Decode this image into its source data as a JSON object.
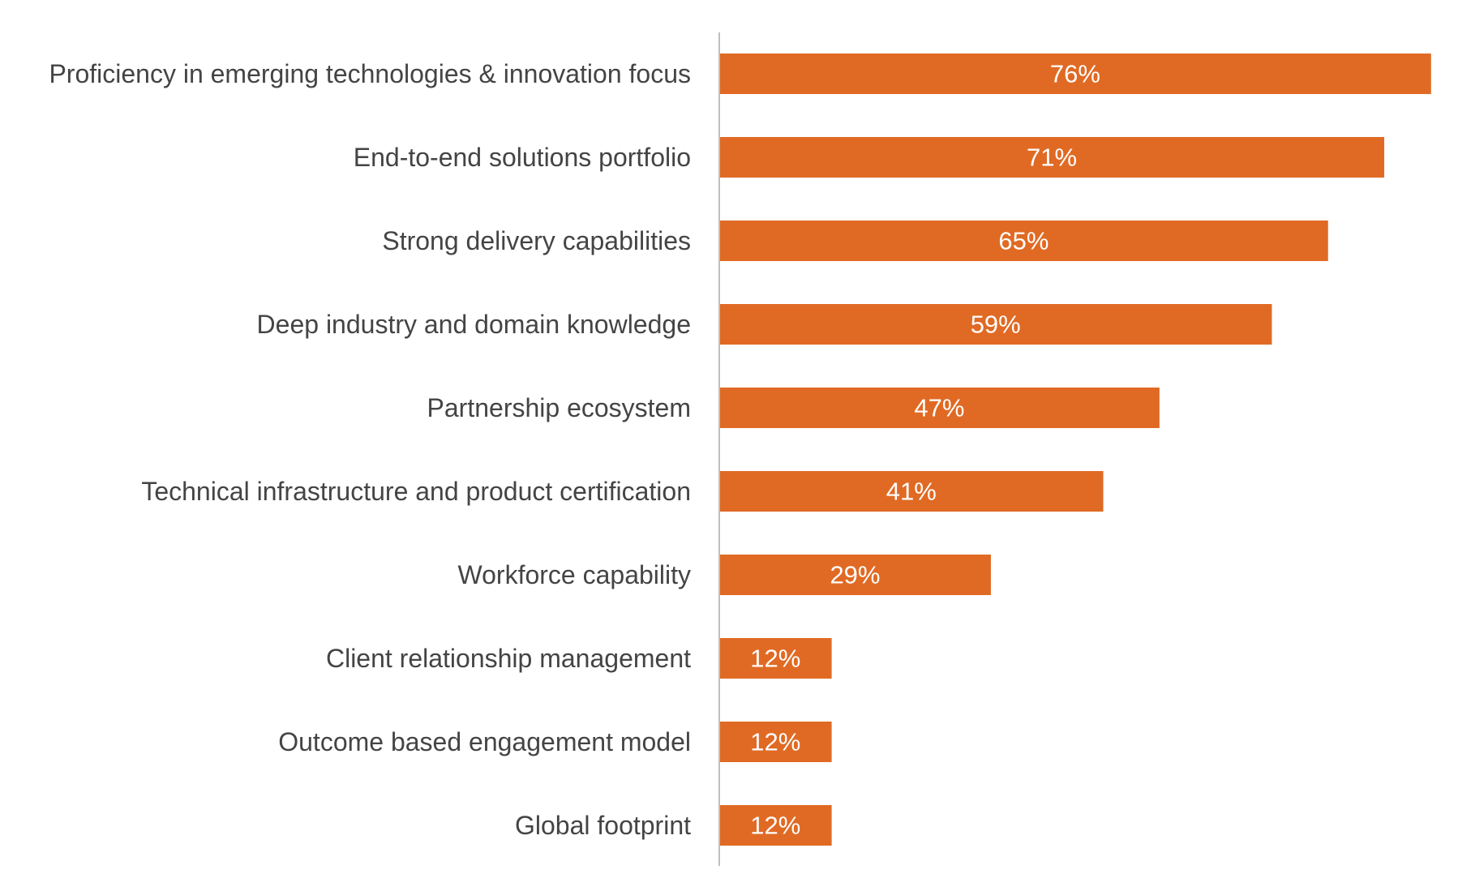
{
  "chart_data": {
    "type": "bar",
    "orientation": "horizontal",
    "categories": [
      "Proficiency in emerging technologies & innovation focus",
      "End-to-end solutions portfolio",
      "Strong delivery capabilities",
      "Deep industry and domain knowledge",
      "Partnership ecosystem",
      "Technical infrastructure and product certification",
      "Workforce capability",
      "Client relationship management",
      "Outcome based engagement model",
      "Global footprint"
    ],
    "values": [
      76,
      71,
      65,
      59,
      47,
      41,
      29,
      12,
      12,
      12
    ],
    "value_labels": [
      "76%",
      "71%",
      "65%",
      "59%",
      "47%",
      "41%",
      "29%",
      "12%",
      "12%",
      "12%"
    ],
    "unit": "%",
    "title": "",
    "xlabel": "",
    "ylabel": "",
    "xlim": [
      0,
      100
    ],
    "grid": false,
    "legend": "none",
    "bar_color": "#E06A24",
    "label_color": "#444444",
    "value_label_color": "#FFFFFF",
    "axis_color": "#BFBFBF"
  }
}
